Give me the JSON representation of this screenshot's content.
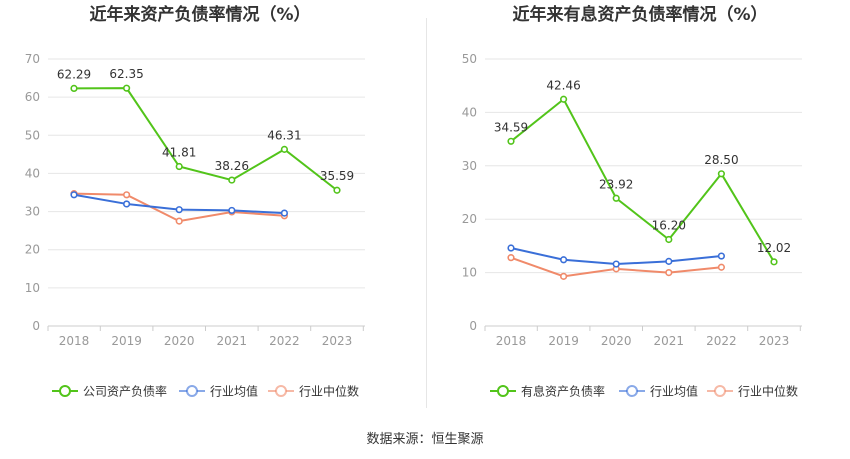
{
  "footer": {
    "label": "数据来源：",
    "source": "恒生聚源"
  },
  "colors": {
    "company": "#52c41a",
    "industry_avg": "#3a6fd8",
    "industry_median": "#f08a6a",
    "grid": "#e6e6e6",
    "axis_text": "#999999",
    "title": "#333333"
  },
  "chart_data": [
    {
      "type": "line",
      "title": "近年来资产负债率情况（%）",
      "categories": [
        "2018",
        "2019",
        "2020",
        "2021",
        "2022",
        "2023"
      ],
      "ylim": [
        0,
        70
      ],
      "yticks": [
        0,
        10,
        20,
        30,
        40,
        50,
        60,
        70
      ],
      "grid": true,
      "legend_position": "bottom",
      "series": [
        {
          "name": "公司资产负债率",
          "color": "#52c41a",
          "labels": true,
          "values": [
            62.29,
            62.35,
            41.81,
            38.26,
            46.31,
            35.59
          ]
        },
        {
          "name": "行业均值",
          "color": "#3a6fd8",
          "labels": false,
          "values": [
            34.4,
            32.0,
            30.5,
            30.3,
            29.6,
            null
          ]
        },
        {
          "name": "行业中位数",
          "color": "#f08a6a",
          "labels": false,
          "values": [
            34.7,
            34.4,
            27.5,
            29.9,
            28.9,
            null
          ]
        }
      ]
    },
    {
      "type": "line",
      "title": "近年来有息资产负债率情况（%）",
      "categories": [
        "2018",
        "2019",
        "2020",
        "2021",
        "2022",
        "2023"
      ],
      "ylim": [
        0,
        50
      ],
      "yticks": [
        0,
        10,
        20,
        30,
        40,
        50
      ],
      "grid": true,
      "legend_position": "bottom",
      "series": [
        {
          "name": "有息资产负债率",
          "color": "#52c41a",
          "labels": true,
          "values": [
            34.59,
            42.46,
            23.92,
            16.2,
            28.5,
            12.02
          ],
          "value_labels": [
            "34.59",
            "42.46",
            "23.92",
            "16.20",
            "28.50",
            "12.02"
          ]
        },
        {
          "name": "行业均值",
          "color": "#3a6fd8",
          "labels": false,
          "values": [
            14.6,
            12.4,
            11.6,
            12.1,
            13.1,
            null
          ]
        },
        {
          "name": "行业中位数",
          "color": "#f08a6a",
          "labels": false,
          "values": [
            12.8,
            9.3,
            10.7,
            10.0,
            11.0,
            null
          ]
        }
      ]
    }
  ]
}
